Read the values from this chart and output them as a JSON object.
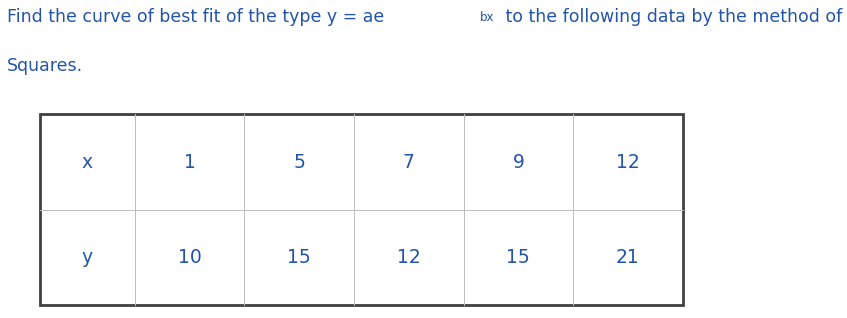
{
  "title_pre": "Find the curve of best fit of the type y = ae",
  "title_sup": "bx",
  "title_post": " to the following data by the method of Least",
  "title_line2": "Squares.",
  "text_color": "#2255aa",
  "table_border_color": "#404040",
  "table_inner_color": "#bbbbbb",
  "x_label": "x",
  "y_label": "y",
  "x_values": [
    "1",
    "5",
    "7",
    "9",
    "12"
  ],
  "y_values": [
    "10",
    "15",
    "12",
    "15",
    "21"
  ],
  "bg_color": "#ffffff",
  "font_size_title": 12.5,
  "font_size_table": 13.5
}
